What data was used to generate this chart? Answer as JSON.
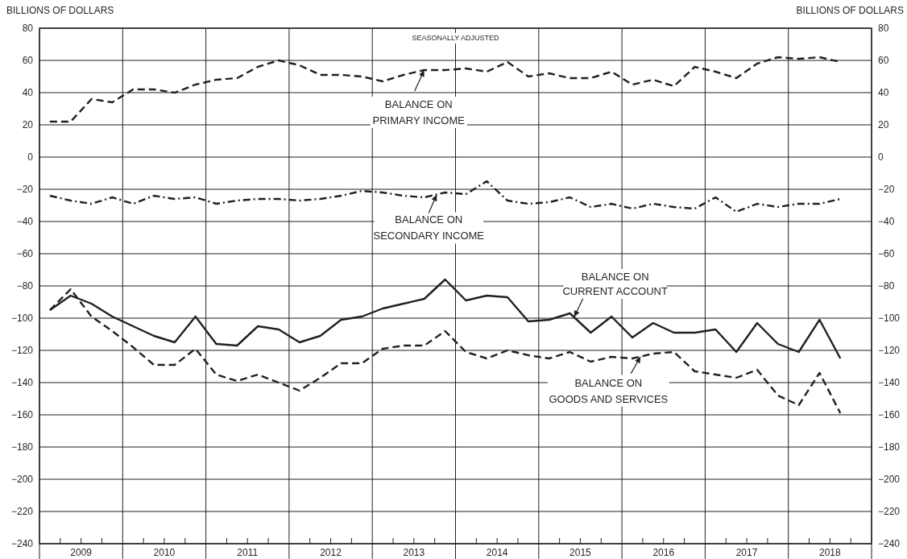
{
  "chart_data": {
    "type": "line",
    "subtitle": "SEASONALLY ADJUSTED",
    "ylabel": "BILLIONS OF DOLLARS",
    "y2label": "BILLIONS OF DOLLARS",
    "x": [
      2009.125,
      2009.375,
      2009.625,
      2009.875,
      2010.125,
      2010.375,
      2010.625,
      2010.875,
      2011.125,
      2011.375,
      2011.625,
      2011.875,
      2012.125,
      2012.375,
      2012.625,
      2012.875,
      2013.125,
      2013.375,
      2013.625,
      2013.875,
      2014.125,
      2014.375,
      2014.625,
      2014.875,
      2015.125,
      2015.375,
      2015.625,
      2015.875,
      2016.125,
      2016.375,
      2016.625,
      2016.875,
      2017.125,
      2017.375,
      2017.625,
      2017.875,
      2018.125,
      2018.375,
      2018.625
    ],
    "series": [
      {
        "name": "BALANCE ON\nPRIMARY INCOME",
        "color": "#231f20",
        "line_style": "dashed",
        "values": [
          22,
          22,
          36,
          34,
          42,
          42,
          40,
          45,
          48,
          49,
          56,
          60,
          57,
          51,
          51,
          50,
          47,
          51,
          54,
          54,
          55,
          53,
          59,
          50,
          52,
          49,
          49,
          53,
          45,
          48,
          44,
          56,
          53,
          49,
          58,
          62,
          61,
          62,
          59
        ]
      },
      {
        "name": "BALANCE ON\nSECONDARY INCOME",
        "color": "#231f20",
        "line_style": "dashdot",
        "values": [
          -24,
          -27,
          -29,
          -25,
          -29,
          -24,
          -26,
          -25,
          -29,
          -27,
          -26,
          -26,
          -27,
          -26,
          -24,
          -21,
          -22,
          -24,
          -25,
          -22,
          -23,
          -15,
          -27,
          -29,
          -28,
          -25,
          -31,
          -29,
          -32,
          -29,
          -31,
          -32,
          -25,
          -34,
          -29,
          -31,
          -29,
          -29,
          -26
        ]
      },
      {
        "name": "BALANCE ON\nCURRENT ACCOUNT",
        "color": "#231f20",
        "line_style": "solid",
        "values": [
          -95,
          -86,
          -91,
          -99,
          -105,
          -111,
          -115,
          -99,
          -116,
          -117,
          -105,
          -107,
          -115,
          -111,
          -101,
          -99,
          -94,
          -91,
          -88,
          -76,
          -89,
          -86,
          -87,
          -102,
          -101,
          -97,
          -109,
          -99,
          -112,
          -103,
          -109,
          -109,
          -107,
          -121,
          -103,
          -116,
          -121,
          -101,
          -125
        ]
      },
      {
        "name": "BALANCE ON\nGOODS AND SERVICES",
        "color": "#231f20",
        "line_style": "dashed",
        "values": [
          -95,
          -82,
          -99,
          -108,
          -118,
          -129,
          -129,
          -119,
          -135,
          -139,
          -135,
          -140,
          -145,
          -137,
          -128,
          -128,
          -119,
          -117,
          -117,
          -108,
          -121,
          -125,
          -120,
          -123,
          -125,
          -121,
          -127,
          -124,
          -125,
          -122,
          -121,
          -133,
          -135,
          -137,
          -132,
          -148,
          -154,
          -134,
          -159
        ]
      }
    ],
    "xlim": [
      2009,
      2019
    ],
    "xticks": [
      {
        "value": 2009,
        "label": null
      },
      {
        "value": 2009.5,
        "label": "2009"
      },
      {
        "value": 2010,
        "label": null
      },
      {
        "value": 2010.5,
        "label": "2010"
      },
      {
        "value": 2011,
        "label": null
      },
      {
        "value": 2011.5,
        "label": "2011"
      },
      {
        "value": 2012,
        "label": null
      },
      {
        "value": 2012.5,
        "label": "2012"
      },
      {
        "value": 2013,
        "label": null
      },
      {
        "value": 2013.5,
        "label": "2013"
      },
      {
        "value": 2014,
        "label": null
      },
      {
        "value": 2014.5,
        "label": "2014"
      },
      {
        "value": 2015,
        "label": null
      },
      {
        "value": 2015.5,
        "label": "2015"
      },
      {
        "value": 2016,
        "label": null
      },
      {
        "value": 2016.5,
        "label": "2016"
      },
      {
        "value": 2017,
        "label": null
      },
      {
        "value": 2017.5,
        "label": "2017"
      },
      {
        "value": 2018,
        "label": null
      },
      {
        "value": 2018.5,
        "label": "2018"
      },
      {
        "value": 2019,
        "label": null
      }
    ],
    "ylim": [
      -240,
      80
    ],
    "yticks": [
      {
        "value": -240,
        "label": "−240"
      },
      {
        "value": -220,
        "label": "−220"
      },
      {
        "value": -200,
        "label": "−200"
      },
      {
        "value": -180,
        "label": "−180"
      },
      {
        "value": -160,
        "label": "−160"
      },
      {
        "value": -140,
        "label": "−140"
      },
      {
        "value": -120,
        "label": "−120"
      },
      {
        "value": -100,
        "label": "−100"
      },
      {
        "value": -80,
        "label": "−80"
      },
      {
        "value": -60,
        "label": "−60"
      },
      {
        "value": -40,
        "label": "−40"
      },
      {
        "value": -20,
        "label": "−20"
      },
      0,
      20,
      40,
      60,
      80
    ],
    "y2lim": [
      -240,
      80
    ],
    "y2ticks": [
      {
        "value": -240,
        "label": "−240"
      },
      {
        "value": -220,
        "label": "−220"
      },
      {
        "value": -200,
        "label": "−200"
      },
      {
        "value": -180,
        "label": "−180"
      },
      {
        "value": -160,
        "label": "−160"
      },
      {
        "value": -140,
        "label": "−140"
      },
      {
        "value": -120,
        "label": "−120"
      },
      {
        "value": -100,
        "label": "−100"
      },
      {
        "value": -80,
        "label": "−80"
      },
      {
        "value": -60,
        "label": "−60"
      },
      {
        "value": -40,
        "label": "−40"
      },
      {
        "value": -20,
        "label": "−20"
      },
      0,
      20,
      40,
      60,
      80
    ],
    "grid": true,
    "legend": "center",
    "marker": "none"
  }
}
